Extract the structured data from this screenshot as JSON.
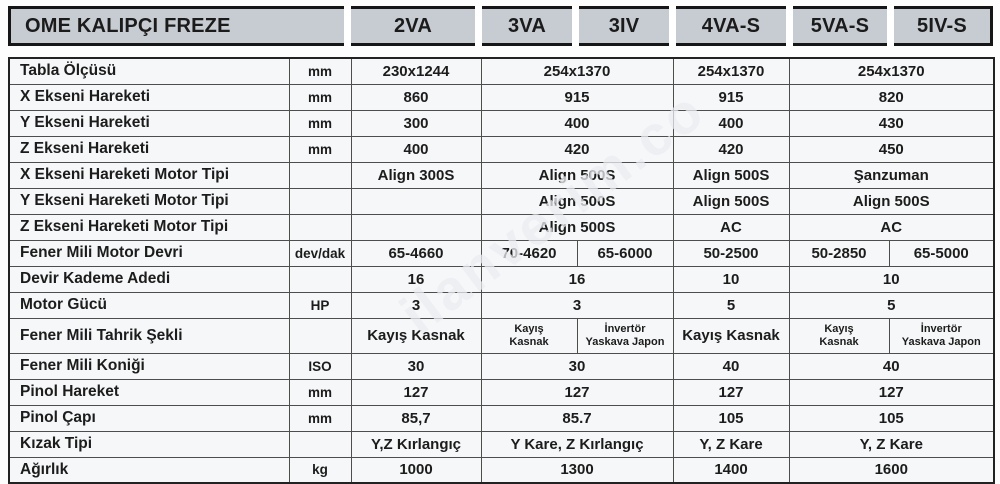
{
  "title": "OME KALIPÇI FREZE",
  "models": [
    "2VA",
    "3VA",
    "3IV",
    "4VA-S",
    "5VA-S",
    "5IV-S"
  ],
  "watermark": "ilanverim.co",
  "colors": {
    "header_bg": "#c7ccd2",
    "border_dark": "#161616",
    "grid_line": "#4d4d4d",
    "cell_bg": "#f6f7f8",
    "text": "#1c1c1c"
  },
  "spec_rows": [
    {
      "label": "Tabla Ölçüsü",
      "unit": "mm",
      "cells": [
        {
          "t": "230x1244",
          "s": 1
        },
        {
          "t": "254x1370",
          "s": 2
        },
        {
          "t": "254x1370",
          "s": 1
        },
        {
          "t": "254x1370",
          "s": 2
        }
      ]
    },
    {
      "label": "X Ekseni Hareketi",
      "unit": "mm",
      "cells": [
        {
          "t": "860",
          "s": 1
        },
        {
          "t": "915",
          "s": 2
        },
        {
          "t": "915",
          "s": 1
        },
        {
          "t": "820",
          "s": 2
        }
      ]
    },
    {
      "label": "Y Ekseni Hareketi",
      "unit": "mm",
      "cells": [
        {
          "t": "300",
          "s": 1
        },
        {
          "t": "400",
          "s": 2
        },
        {
          "t": "400",
          "s": 1
        },
        {
          "t": "430",
          "s": 2
        }
      ]
    },
    {
      "label": "Z Ekseni Hareketi",
      "unit": "mm",
      "cells": [
        {
          "t": "400",
          "s": 1
        },
        {
          "t": "420",
          "s": 2
        },
        {
          "t": "420",
          "s": 1
        },
        {
          "t": "450",
          "s": 2
        }
      ]
    },
    {
      "label": "X Ekseni Hareketi Motor Tipi",
      "unit": "",
      "cells": [
        {
          "t": "Align 300S",
          "s": 1
        },
        {
          "t": "Align 500S",
          "s": 2
        },
        {
          "t": "Align 500S",
          "s": 1
        },
        {
          "t": "Şanzuman",
          "s": 2
        }
      ]
    },
    {
      "label": "Y Ekseni Hareketi Motor Tipi",
      "unit": "",
      "cells": [
        {
          "t": "",
          "s": 1
        },
        {
          "t": "Align 500S",
          "s": 2
        },
        {
          "t": "Align 500S",
          "s": 1
        },
        {
          "t": "Align 500S",
          "s": 2
        }
      ]
    },
    {
      "label": "Z Ekseni Hareketi Motor Tipi",
      "unit": "",
      "cells": [
        {
          "t": "",
          "s": 1
        },
        {
          "t": "Align 500S",
          "s": 2
        },
        {
          "t": "AC",
          "s": 1
        },
        {
          "t": "AC",
          "s": 2
        }
      ]
    },
    {
      "label": "Fener Mili Motor Devri",
      "unit": "dev/dak",
      "cells": [
        {
          "t": "65-4660",
          "s": 1
        },
        {
          "t": "70-4620",
          "s": 1
        },
        {
          "t": "65-6000",
          "s": 1
        },
        {
          "t": "50-2500",
          "s": 1
        },
        {
          "t": "50-2850",
          "s": 1
        },
        {
          "t": "65-5000",
          "s": 1
        }
      ]
    },
    {
      "label": "Devir Kademe Adedi",
      "unit": "",
      "cells": [
        {
          "t": "16",
          "s": 1
        },
        {
          "t": "16",
          "s": 2
        },
        {
          "t": "10",
          "s": 1
        },
        {
          "t": "10",
          "s": 2
        }
      ]
    },
    {
      "label": "Motor Gücü",
      "unit": "HP",
      "cells": [
        {
          "t": "3",
          "s": 1
        },
        {
          "t": "3",
          "s": 2
        },
        {
          "t": "5",
          "s": 1
        },
        {
          "t": "5",
          "s": 2
        }
      ]
    },
    {
      "label": "Fener Mili Tahrik Şekli",
      "unit": "",
      "cells": [
        {
          "t": "Kayış Kasnak",
          "s": 1
        },
        {
          "lines": [
            "Kayış",
            "Kasnak"
          ],
          "s": 1,
          "small": true
        },
        {
          "lines": [
            "İnvertör",
            "Yaskava Japon"
          ],
          "s": 1,
          "small": true
        },
        {
          "t": "Kayış Kasnak",
          "s": 1
        },
        {
          "lines": [
            "Kayış",
            "Kasnak"
          ],
          "s": 1,
          "small": true
        },
        {
          "lines": [
            "İnvertör",
            "Yaskava Japon"
          ],
          "s": 1,
          "small": true
        }
      ]
    },
    {
      "label": "Fener Mili Koniği",
      "unit": "ISO",
      "cells": [
        {
          "t": "30",
          "s": 1
        },
        {
          "t": "30",
          "s": 2
        },
        {
          "t": "40",
          "s": 1
        },
        {
          "t": "40",
          "s": 2
        }
      ]
    },
    {
      "label": "Pinol Hareket",
      "unit": "mm",
      "cells": [
        {
          "t": "127",
          "s": 1
        },
        {
          "t": "127",
          "s": 2
        },
        {
          "t": "127",
          "s": 1
        },
        {
          "t": "127",
          "s": 2
        }
      ]
    },
    {
      "label": "Pinol Çapı",
      "unit": "mm",
      "cells": [
        {
          "t": "85,7",
          "s": 1
        },
        {
          "t": "85.7",
          "s": 2
        },
        {
          "t": "105",
          "s": 1
        },
        {
          "t": "105",
          "s": 2
        }
      ]
    },
    {
      "label": "Kızak Tipi",
      "unit": "",
      "cells": [
        {
          "t": "Y,Z Kırlangıç",
          "s": 1
        },
        {
          "t": "Y Kare, Z Kırlangıç",
          "s": 2
        },
        {
          "t": "Y, Z Kare",
          "s": 1
        },
        {
          "t": "Y, Z Kare",
          "s": 2
        }
      ]
    },
    {
      "label": "Ağırlık",
      "unit": "kg",
      "cells": [
        {
          "t": "1000",
          "s": 1
        },
        {
          "t": "1300",
          "s": 2
        },
        {
          "t": "1400",
          "s": 1
        },
        {
          "t": "1600",
          "s": 2
        }
      ]
    }
  ]
}
